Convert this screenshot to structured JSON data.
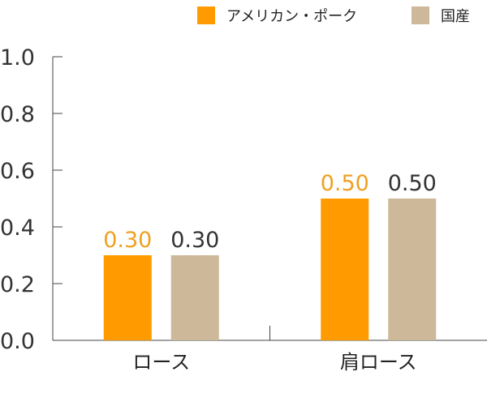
{
  "chart_data": {
    "type": "bar",
    "title": "",
    "xlabel": "",
    "ylabel": "",
    "categories": [
      "ロース",
      "肩ロース"
    ],
    "series": [
      {
        "name": "アメリカン・ポーク",
        "values": [
          0.3,
          0.5
        ],
        "color": "#FF9B00",
        "label_color": "#F0A020"
      },
      {
        "name": "国産",
        "values": [
          0.3,
          0.5
        ],
        "color": "#CDB89A",
        "label_color": "#333333"
      }
    ],
    "ylim": [
      0,
      1.0
    ],
    "yticks": [
      "0.0",
      "0.2",
      "0.4",
      "0.6",
      "0.8",
      "1.0"
    ],
    "value_labels": [
      [
        "0.30",
        "0.50"
      ],
      [
        "0.30",
        "0.50"
      ]
    ],
    "grid": false,
    "legend_position": "top-right"
  }
}
